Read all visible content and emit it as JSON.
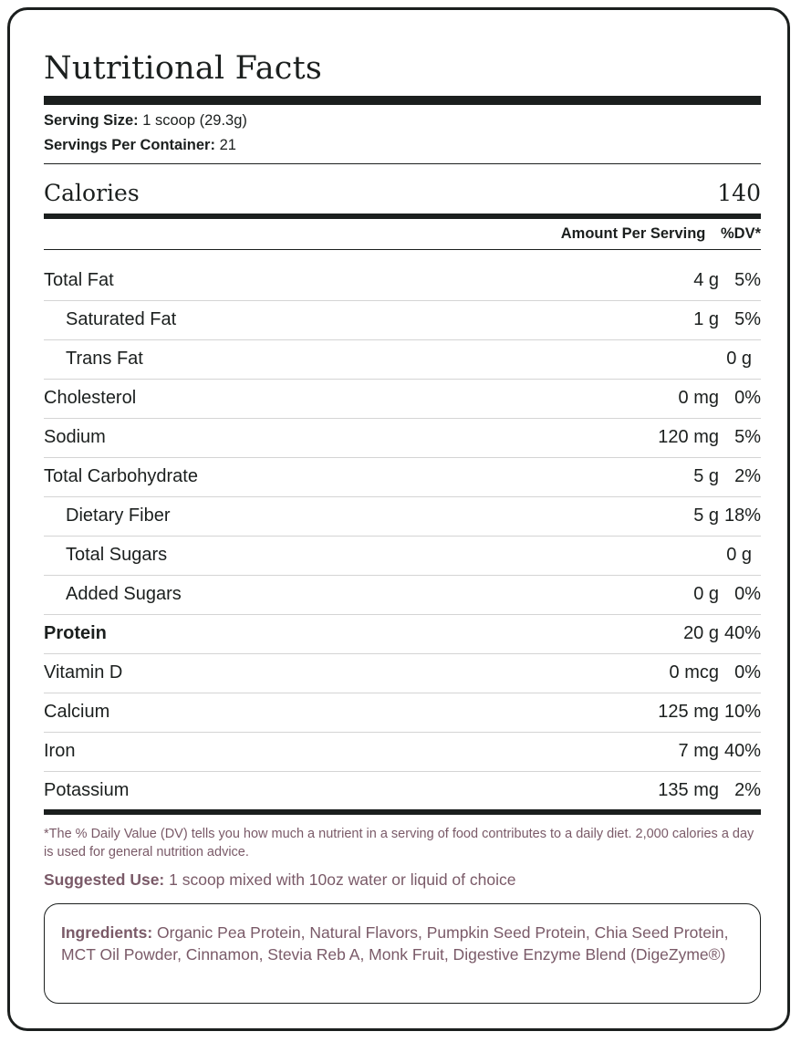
{
  "title": "Nutritional Facts",
  "serving": {
    "size_label": "Serving Size:",
    "size_value": "1 scoop (29.3g)",
    "per_container_label": "Servings Per Container:",
    "per_container_value": "21"
  },
  "calories": {
    "label": "Calories",
    "value": "140"
  },
  "header": {
    "amount": "Amount Per Serving",
    "dv": "%DV*"
  },
  "nutrients": [
    {
      "name": "Total Fat",
      "amount": "4 g",
      "dv": "5%"
    },
    {
      "name": "Saturated Fat",
      "amount": "1 g",
      "dv": "5%"
    },
    {
      "name": "Trans Fat",
      "amount": "0 g",
      "dv": ""
    },
    {
      "name": "Cholesterol",
      "amount": "0 mg",
      "dv": "0%"
    },
    {
      "name": "Sodium",
      "amount": "120 mg",
      "dv": "5%"
    },
    {
      "name": "Total Carbohydrate",
      "amount": "5 g",
      "dv": "2%"
    },
    {
      "name": "Dietary Fiber",
      "amount": "5 g",
      "dv": "18%"
    },
    {
      "name": "Total Sugars",
      "amount": "0 g",
      "dv": ""
    },
    {
      "name": "Added Sugars",
      "amount": "0 g",
      "dv": "0%"
    },
    {
      "name": "Protein",
      "amount": "20 g",
      "dv": "40%"
    },
    {
      "name": "Vitamin D",
      "amount": "0 mcg",
      "dv": "0%"
    },
    {
      "name": "Calcium",
      "amount": "125 mg",
      "dv": "10%"
    },
    {
      "name": "Iron",
      "amount": "7 mg",
      "dv": "40%"
    },
    {
      "name": "Potassium",
      "amount": "135 mg",
      "dv": "2%"
    }
  ],
  "footnote": "*The % Daily Value (DV) tells you how much a nutrient in a serving of food contributes to a daily diet. 2,000 calories a day is used for general nutrition advice.",
  "suggested_use": {
    "label": "Suggested Use:",
    "value": "1 scoop mixed with 10oz water or liquid of choice"
  },
  "ingredients": {
    "label": "Ingredients:",
    "value": "Organic Pea Protein, Natural Flavors, Pumpkin Seed Protein, Chia Seed Protein, MCT Oil Powder, Cinnamon, Stevia Reb A, Monk Fruit, Digestive Enzyme Blend (DigeZyme®)"
  },
  "colors": {
    "text": "#1b1f1e",
    "muted": "#7a5a68",
    "divider": "#d4d4d4"
  }
}
